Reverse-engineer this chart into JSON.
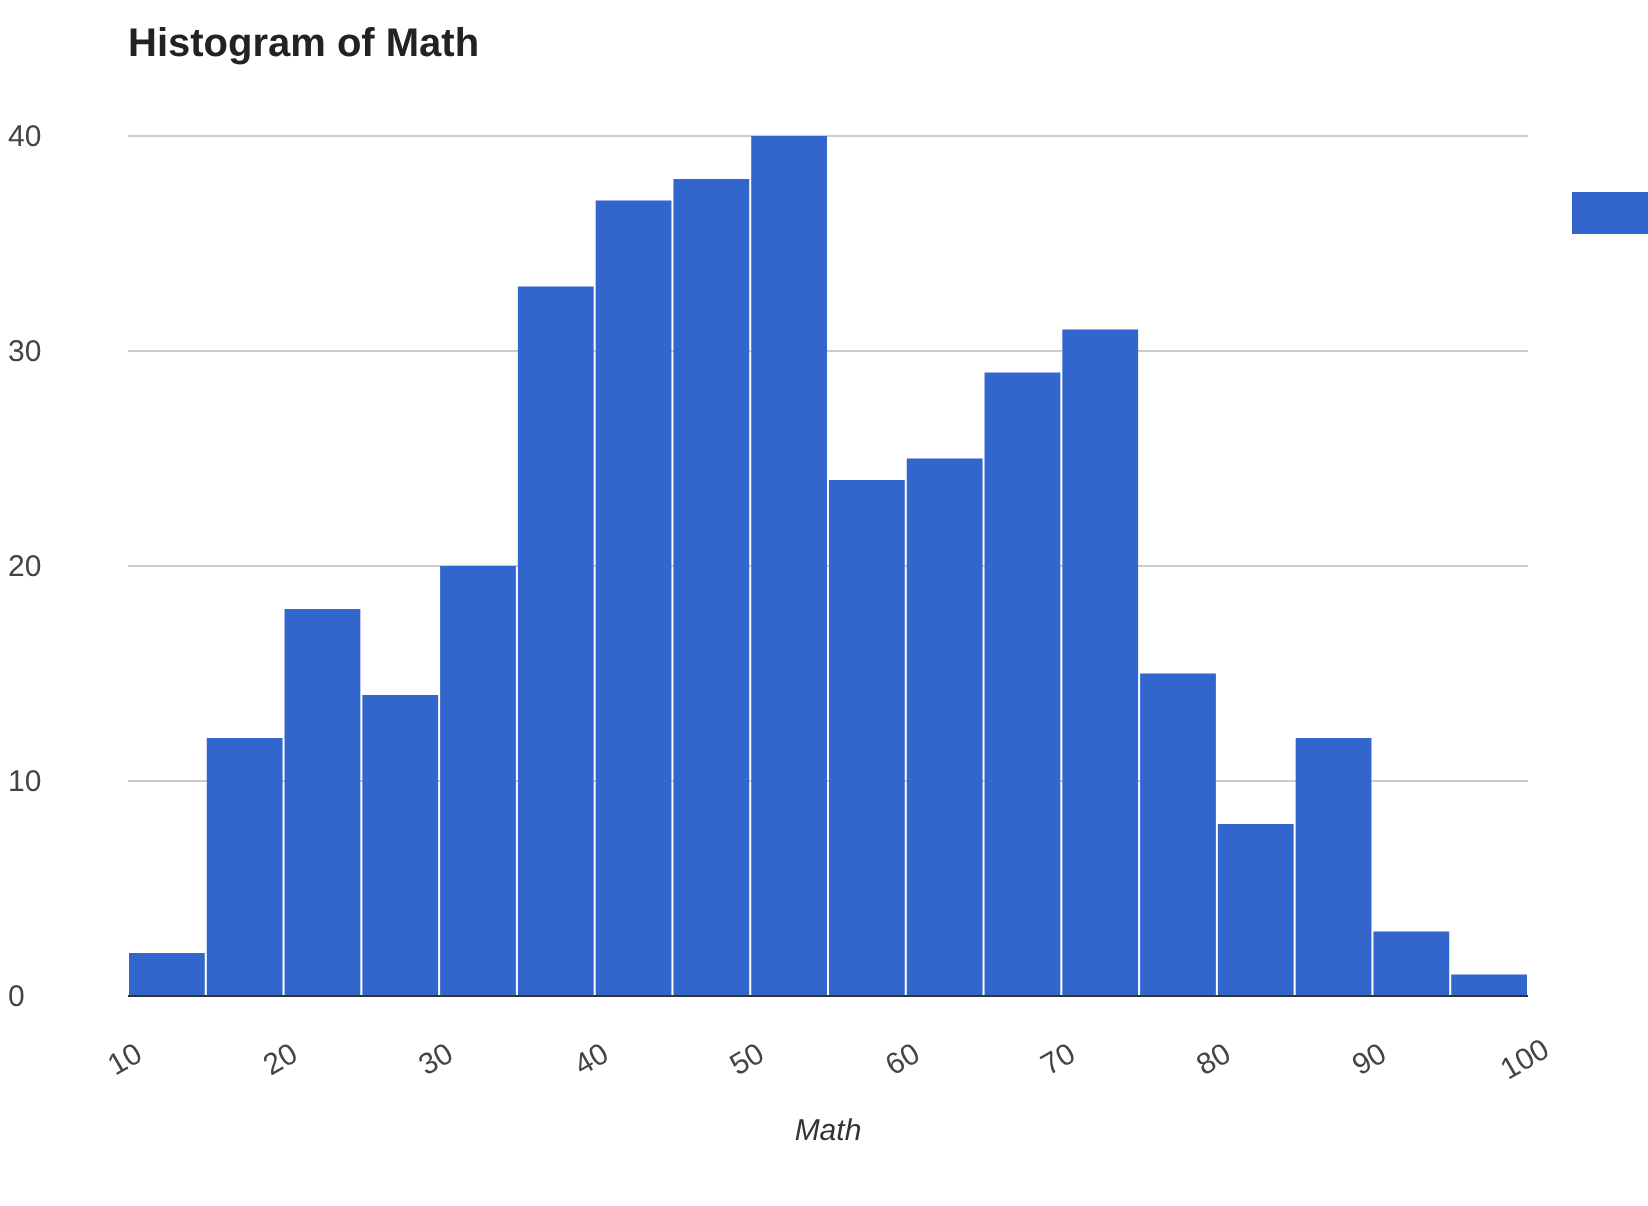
{
  "chart_data": {
    "type": "histogram",
    "title": "Histogram of Math",
    "xlabel": "Math",
    "bins": [
      10,
      15,
      20,
      25,
      30,
      35,
      40,
      45,
      50,
      55,
      60,
      65,
      70,
      75,
      80,
      85,
      90,
      95,
      100
    ],
    "series": [
      {
        "color": "#3366cc",
        "values": [
          2,
          12,
          18,
          14,
          20,
          33,
          37,
          38,
          40,
          24,
          25,
          29,
          31,
          15,
          8,
          12,
          3,
          1
        ]
      }
    ],
    "xlim": [
      10,
      100
    ],
    "xticks": [
      10,
      20,
      30,
      40,
      50,
      60,
      70,
      80,
      90,
      100
    ],
    "ylim": [
      0,
      40
    ],
    "yticks": [
      0,
      10,
      20,
      30,
      40
    ],
    "grid": "y"
  }
}
